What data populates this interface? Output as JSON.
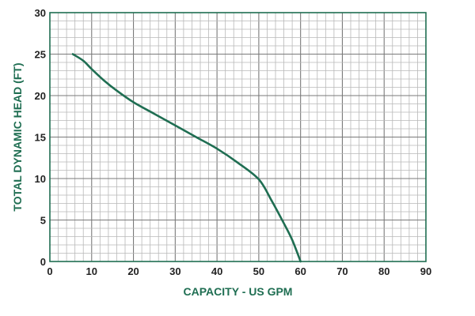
{
  "chart_data": {
    "type": "line",
    "title": "",
    "xlabel": "CAPACITY - US GPM",
    "ylabel": "TOTAL DYNAMIC HEAD (FT)",
    "xlim": [
      0,
      90
    ],
    "ylim": [
      0,
      30
    ],
    "x_ticks": [
      "0",
      "10",
      "20",
      "30",
      "40",
      "50",
      "60",
      "70",
      "80",
      "90"
    ],
    "y_ticks": [
      "0",
      "5",
      "10",
      "15",
      "20",
      "25",
      "30"
    ],
    "grid": true,
    "minor_grid_step": 2,
    "series": [
      {
        "name": "",
        "x": [
          5.5,
          8,
          10,
          13,
          16,
          20,
          25,
          30,
          35,
          40,
          45,
          50,
          53,
          56,
          58,
          60
        ],
        "y": [
          25,
          24.2,
          23.2,
          21.8,
          20.6,
          19.2,
          17.8,
          16.4,
          15.0,
          13.6,
          11.9,
          9.9,
          7.4,
          4.6,
          2.6,
          0
        ]
      }
    ]
  },
  "colors": {
    "accent": "#1f6e52",
    "grid_minor": "#b8b8b8",
    "grid_major": "#7a7a7a",
    "text": "#222222"
  }
}
